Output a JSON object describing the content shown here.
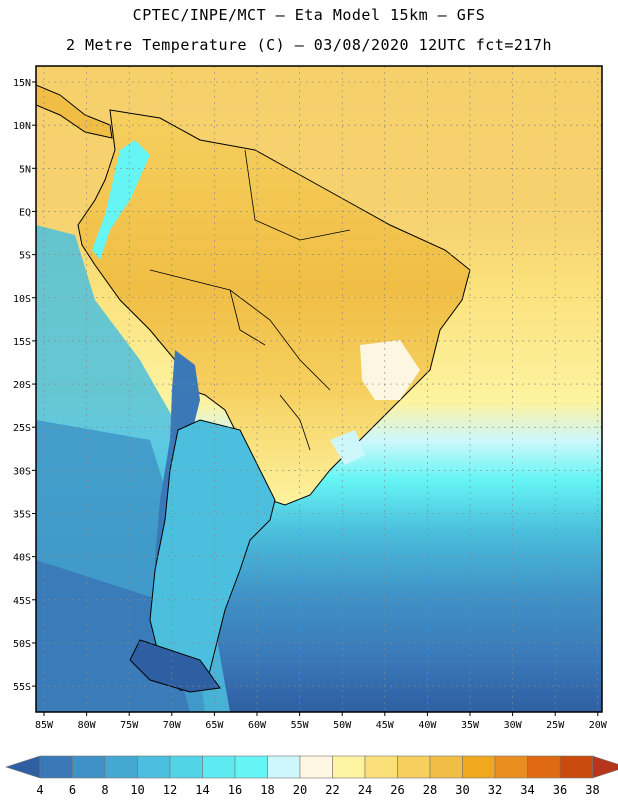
{
  "header": {
    "line1": "CPTEC/INPE/MCT –  Eta Model 15km – GFS",
    "line2": "2 Metre Temperature (C) – 03/08/2020 12UTC fct=217h"
  },
  "map": {
    "lat_labels": [
      "15N",
      "10N",
      "5N",
      "EQ",
      "5S",
      "10S",
      "15S",
      "20S",
      "25S",
      "30S",
      "35S",
      "40S",
      "45S",
      "50S",
      "55S"
    ],
    "lon_labels": [
      "85W",
      "80W",
      "75W",
      "70W",
      "65W",
      "60W",
      "55W",
      "50W",
      "45W",
      "40W",
      "35W",
      "30W",
      "25W",
      "20W"
    ],
    "grid_lines": true
  },
  "colorbar": {
    "ticks": [
      "4",
      "6",
      "8",
      "10",
      "12",
      "14",
      "16",
      "18",
      "20",
      "22",
      "24",
      "26",
      "28",
      "30",
      "32",
      "34",
      "36",
      "38"
    ],
    "colors": [
      "#2e5fa3",
      "#3a78b8",
      "#3f92c6",
      "#45a8d2",
      "#4bbfdd",
      "#52d4e6",
      "#5deaf0",
      "#66f5f5",
      "#cdf7fa",
      "#fdf7e2",
      "#fdf3a0",
      "#fbe07a",
      "#f6cf5e",
      "#f0be45",
      "#f0a81f",
      "#ea8d1f",
      "#e06a12",
      "#c94a0c",
      "#b5361a"
    ]
  }
}
